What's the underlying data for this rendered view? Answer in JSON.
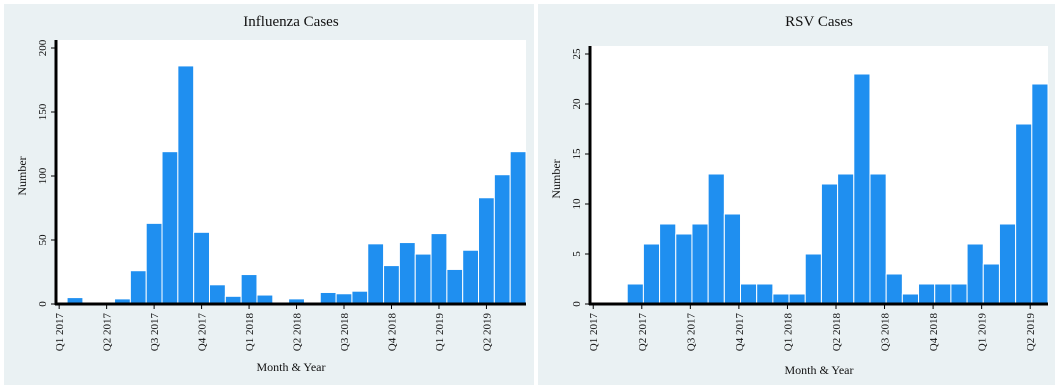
{
  "chart_data": [
    {
      "type": "bar",
      "title": "Influenza Cases",
      "xlabel": "Month & Year",
      "ylabel": "Number",
      "ylim": [
        0,
        200
      ],
      "yticks": [
        0,
        50,
        100,
        150,
        200
      ],
      "grid": false,
      "bar_color": "#1f8ff0",
      "xtick_labels": [
        "Q1 2017",
        "Q2 2017",
        "Q3 2017",
        "Q4 2017",
        "Q1 2018",
        "Q2 2018",
        "Q3 2018",
        "Q4 2018",
        "Q1 2019",
        "Q2 2019"
      ],
      "values": [
        5,
        0,
        0,
        4,
        26,
        63,
        119,
        186,
        56,
        15,
        6,
        23,
        7,
        0,
        4,
        0,
        9,
        8,
        10,
        47,
        30,
        48,
        39,
        55,
        27,
        42,
        83,
        101,
        119
      ]
    },
    {
      "type": "bar",
      "title": "RSV Cases",
      "xlabel": "Month & Year",
      "ylabel": "Number",
      "ylim": [
        0,
        25
      ],
      "yticks": [
        0,
        5,
        10,
        15,
        20,
        25
      ],
      "grid": false,
      "bar_color": "#1f8ff0",
      "xtick_labels": [
        "Q1 2017",
        "Q2 2017",
        "Q3 2017",
        "Q4 2017",
        "Q1 2018",
        "Q2 2018",
        "Q3 2018",
        "Q4 2018",
        "Q1 2019",
        "Q2 2019"
      ],
      "values": [
        0,
        0,
        2,
        6,
        8,
        7,
        8,
        13,
        9,
        2,
        2,
        1,
        1,
        5,
        12,
        13,
        23,
        13,
        3,
        1,
        2,
        2,
        2,
        6,
        4,
        8,
        18,
        22
      ]
    }
  ]
}
